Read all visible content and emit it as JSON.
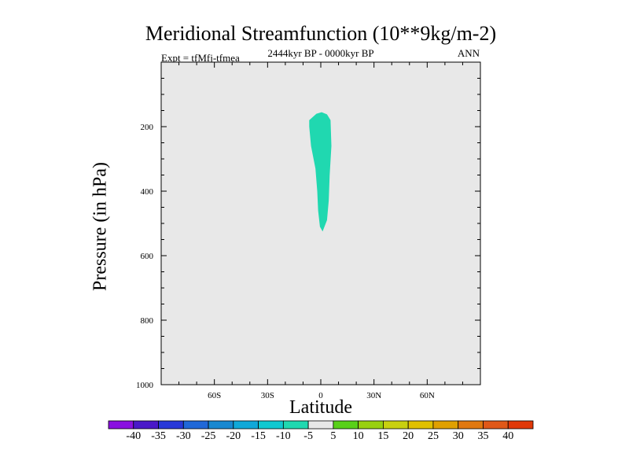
{
  "chart_data": {
    "type": "filled-contour",
    "title": "Meridional Streamfunction (10**9kg/m-2)",
    "subtitle": "2444kyr BP - 0000kyr BP",
    "left_label": "Expt = tfMfj-tfmea",
    "right_label": "ANN",
    "xlabel": "Latitude",
    "ylabel": "Pressure (in hPa)",
    "xlim": [
      -90,
      90
    ],
    "ylim": [
      1000,
      0
    ],
    "x_ticks": [
      {
        "value": -60,
        "label": "60S"
      },
      {
        "value": -30,
        "label": "30S"
      },
      {
        "value": 0,
        "label": "0"
      },
      {
        "value": 30,
        "label": "30N"
      },
      {
        "value": 60,
        "label": "60N"
      }
    ],
    "y_ticks": [
      {
        "value": 200,
        "label": "200"
      },
      {
        "value": 400,
        "label": "400"
      },
      {
        "value": 600,
        "label": "600"
      },
      {
        "value": 800,
        "label": "800"
      },
      {
        "value": 1000,
        "label": "1000"
      }
    ],
    "background_color": "#e8e8e8",
    "contour_region": {
      "level_range": [
        -10,
        -5
      ],
      "color": "#20d8b0",
      "outline": [
        [
          -6.5,
          180
        ],
        [
          -2.5,
          160
        ],
        [
          0.5,
          155
        ],
        [
          3.5,
          162
        ],
        [
          5.5,
          180
        ],
        [
          6.0,
          260
        ],
        [
          5.0,
          350
        ],
        [
          4.5,
          430
        ],
        [
          3.5,
          490
        ],
        [
          1.0,
          525
        ],
        [
          -0.5,
          510
        ],
        [
          -1.5,
          460
        ],
        [
          -2.0,
          400
        ],
        [
          -3.0,
          330
        ],
        [
          -5.5,
          260
        ],
        [
          -6.5,
          200
        ]
      ]
    },
    "colorbar": {
      "labels": [
        "-40",
        "-35",
        "-30",
        "-25",
        "-20",
        "-15",
        "-10",
        "-5",
        "5",
        "10",
        "15",
        "20",
        "25",
        "30",
        "35",
        "40"
      ],
      "colors": [
        "#8a10e0",
        "#4a18c8",
        "#2838d8",
        "#2068d8",
        "#1888d0",
        "#10a8d8",
        "#10c8d0",
        "#20d8b0",
        "#e8e8e8",
        "#58d018",
        "#98d010",
        "#c8d010",
        "#e0c000",
        "#e0a000",
        "#e07810",
        "#e05818",
        "#e03808"
      ]
    }
  }
}
